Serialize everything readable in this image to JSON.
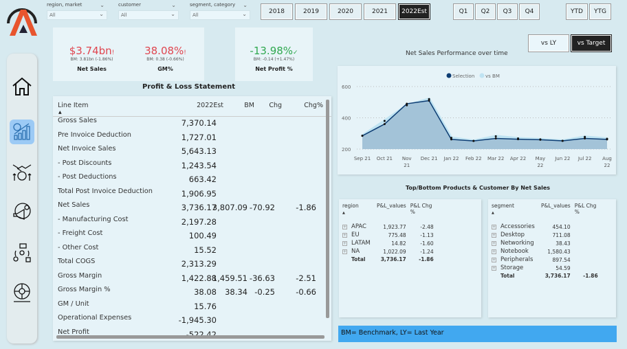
{
  "filters": [
    {
      "label": "region, market",
      "value": "All"
    },
    {
      "label": "customer",
      "value": "All"
    },
    {
      "label": "segment, category",
      "value": "All"
    }
  ],
  "years": [
    "2018",
    "2019",
    "2020",
    "2021",
    "2022Est"
  ],
  "selected_year": "2022Est",
  "quarters": [
    "Q1",
    "Q2",
    "Q3",
    "Q4"
  ],
  "period": [
    "YTD",
    "YTG"
  ],
  "compare": {
    "vs_ly": "vs LY",
    "vs_target": "vs Target"
  },
  "kpis": [
    {
      "value": "$3.74bn",
      "flag": "!",
      "sub": "BM: 3.81bn (-1.86%)",
      "label": "Net Sales",
      "color": "#e0454f"
    },
    {
      "value": "38.08%",
      "flag": "!",
      "sub": "BM: 0.38 (-0.66%)",
      "label": "GM%",
      "color": "#e0454f"
    },
    {
      "value": "-13.98%",
      "flag": "✓",
      "sub": "BM: -0.14 (+1.47%)",
      "label": "Net Profit %",
      "color": "#2fa84f"
    }
  ],
  "pl": {
    "title": "Profit & Loss Statement",
    "headers": [
      "Line Item",
      "2022Est",
      "BM",
      "Chg",
      "Chg%"
    ],
    "rows": [
      [
        "Gross Sales",
        "7,370.14",
        "",
        "",
        ""
      ],
      [
        "Pre Invoice Deduction",
        "1,727.01",
        "",
        "",
        ""
      ],
      [
        "Net Invoice Sales",
        "5,643.13",
        "",
        "",
        ""
      ],
      [
        "- Post Discounts",
        "1,243.54",
        "",
        "",
        ""
      ],
      [
        "- Post Deductions",
        "663.42",
        "",
        "",
        ""
      ],
      [
        "Total Post Invoice Deduction",
        "1,906.95",
        "",
        "",
        ""
      ],
      [
        "Net Sales",
        "3,736.17",
        "3,807.09",
        "-70.92",
        "-1.86"
      ],
      [
        "- Manufacturing Cost",
        "2,197.28",
        "",
        "",
        ""
      ],
      [
        "- Freight Cost",
        "100.49",
        "",
        "",
        ""
      ],
      [
        "- Other Cost",
        "15.52",
        "",
        "",
        ""
      ],
      [
        "Total COGS",
        "2,313.29",
        "",
        "",
        ""
      ],
      [
        "Gross Margin",
        "1,422.88",
        "1,459.51",
        "-36.63",
        "-2.51"
      ],
      [
        "Gross Margin %",
        "38.08",
        "38.34",
        "-0.25",
        "-0.66"
      ],
      [
        "GM / Unit",
        "15.76",
        "",
        "",
        ""
      ],
      [
        "Operational Expenses",
        "-1,945.30",
        "",
        "",
        ""
      ],
      [
        "Net Profit",
        "-522.42",
        "",
        "",
        ""
      ]
    ]
  },
  "chart_data": {
    "type": "area",
    "title": "Net Sales Performance over time",
    "categories": [
      "Sep 21",
      "Oct 21",
      "Nov 21",
      "Dec 21",
      "Jan 22",
      "Feb 22",
      "Mar 22",
      "Apr 22",
      "May 22",
      "Jun 22",
      "Jul 22",
      "Aug 22"
    ],
    "series": [
      {
        "name": "Selection",
        "color": "#0d3d73",
        "values": [
          285,
          360,
          490,
          510,
          262,
          252,
          268,
          263,
          260,
          253,
          268,
          262
        ]
      },
      {
        "name": "vs BM",
        "color": "#bfe3f2",
        "values": [
          285,
          380,
          480,
          520,
          272,
          252,
          282,
          268,
          262,
          253,
          278,
          266
        ]
      }
    ],
    "yticks": [
      200,
      400,
      600
    ],
    "ylim": [
      200,
      600
    ],
    "grid": true,
    "legend": "top-center"
  },
  "topbottom_title": "Top/Bottom Products & Customer By Net Sales",
  "region_table": {
    "headers": [
      "region",
      "P&L_values",
      "P&L Chg %"
    ],
    "rows": [
      [
        "APAC",
        "1,923.77",
        "-2.48"
      ],
      [
        "EU",
        "775.48",
        "-1.13"
      ],
      [
        "LATAM",
        "14.82",
        "-1.60"
      ],
      [
        "NA",
        "1,022.09",
        "-1.24"
      ]
    ],
    "total": [
      "Total",
      "3,736.17",
      "-1.86"
    ]
  },
  "segment_table": {
    "headers": [
      "segment",
      "P&L_values",
      "P&L Chg %"
    ],
    "rows": [
      [
        "Accessories",
        "454.10",
        ""
      ],
      [
        "Desktop",
        "711.08",
        ""
      ],
      [
        "Networking",
        "38.43",
        ""
      ],
      [
        "Notebook",
        "1,580.43",
        ""
      ],
      [
        "Peripherals",
        "897.54",
        ""
      ],
      [
        "Storage",
        "54.59",
        ""
      ]
    ],
    "total": [
      "Total",
      "3,736.17",
      "-1.86"
    ]
  },
  "footnote": "BM= Benchmark, LY= Last Year",
  "nav": [
    "home-icon",
    "finance-growth-icon",
    "partnership-money-icon",
    "marketing-icon",
    "supply-chain-icon",
    "global-executive-icon"
  ]
}
